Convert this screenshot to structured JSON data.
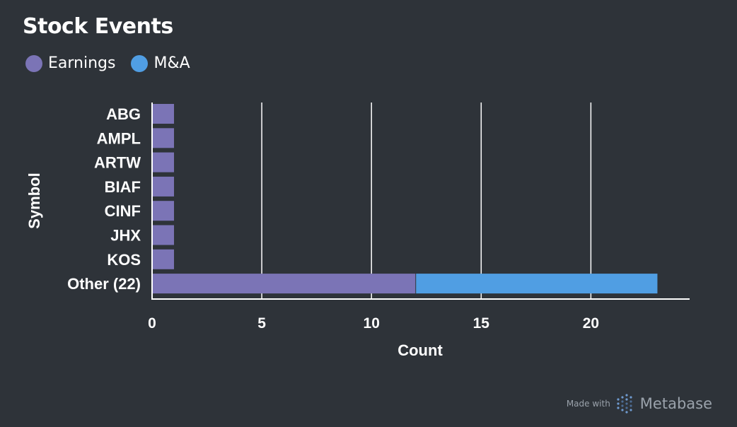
{
  "chart_data": {
    "type": "bar",
    "orientation": "horizontal",
    "stacked": true,
    "title": "Stock Events",
    "xlabel": "Count",
    "ylabel": "Symbol",
    "categories": [
      "ABG",
      "AMPL",
      "ARTW",
      "BIAF",
      "CINF",
      "JHX",
      "KOS",
      "Other (22)"
    ],
    "series": [
      {
        "name": "Earnings",
        "color": "#7b74b6",
        "values": [
          1,
          1,
          1,
          1,
          1,
          1,
          1,
          12
        ]
      },
      {
        "name": "M&A",
        "color": "#509ee3",
        "values": [
          0,
          0,
          0,
          0,
          0,
          0,
          0,
          11
        ]
      }
    ],
    "xlim": [
      0,
      24.5
    ],
    "xticks": [
      0,
      5,
      10,
      15,
      20
    ],
    "grid": "vertical",
    "legend_position": "top-left"
  },
  "footer": {
    "made_with": "Made with",
    "brand": "Metabase"
  }
}
